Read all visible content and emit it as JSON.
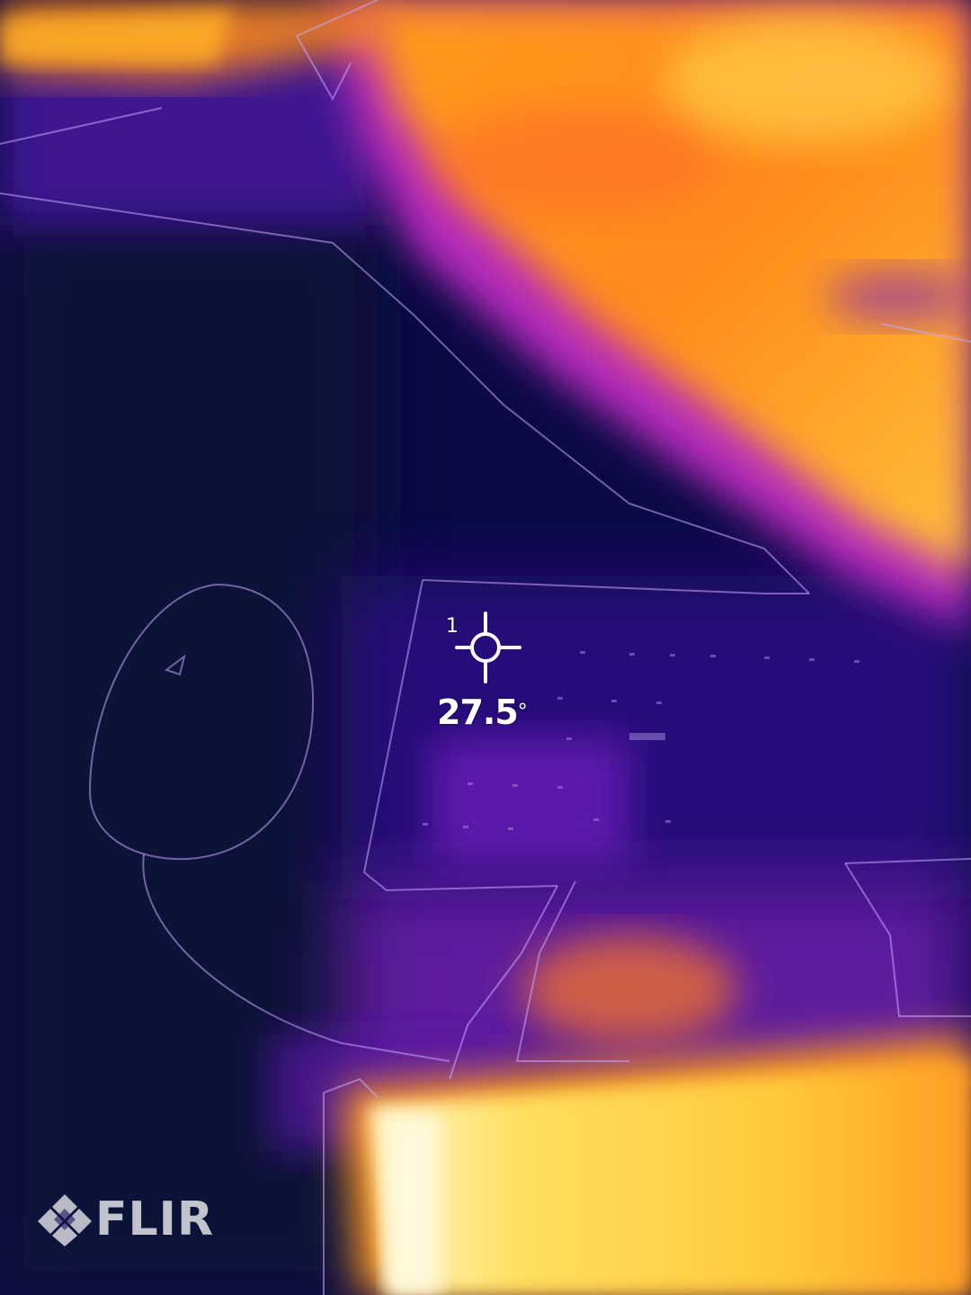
{
  "spot_meter": {
    "index_label": "1",
    "temperature_value": "27.5",
    "unit_symbol": "°",
    "icon": "crosshair-icon"
  },
  "brand": {
    "name": "FLIR",
    "icon": "flir-diamond-logo"
  },
  "palette": {
    "cold": "#0a0840",
    "cool": "#3a1190",
    "mid": "#b12bbd",
    "warm": "#ff8a1a",
    "hot": "#ffe070",
    "hottest": "#fff9d6"
  }
}
